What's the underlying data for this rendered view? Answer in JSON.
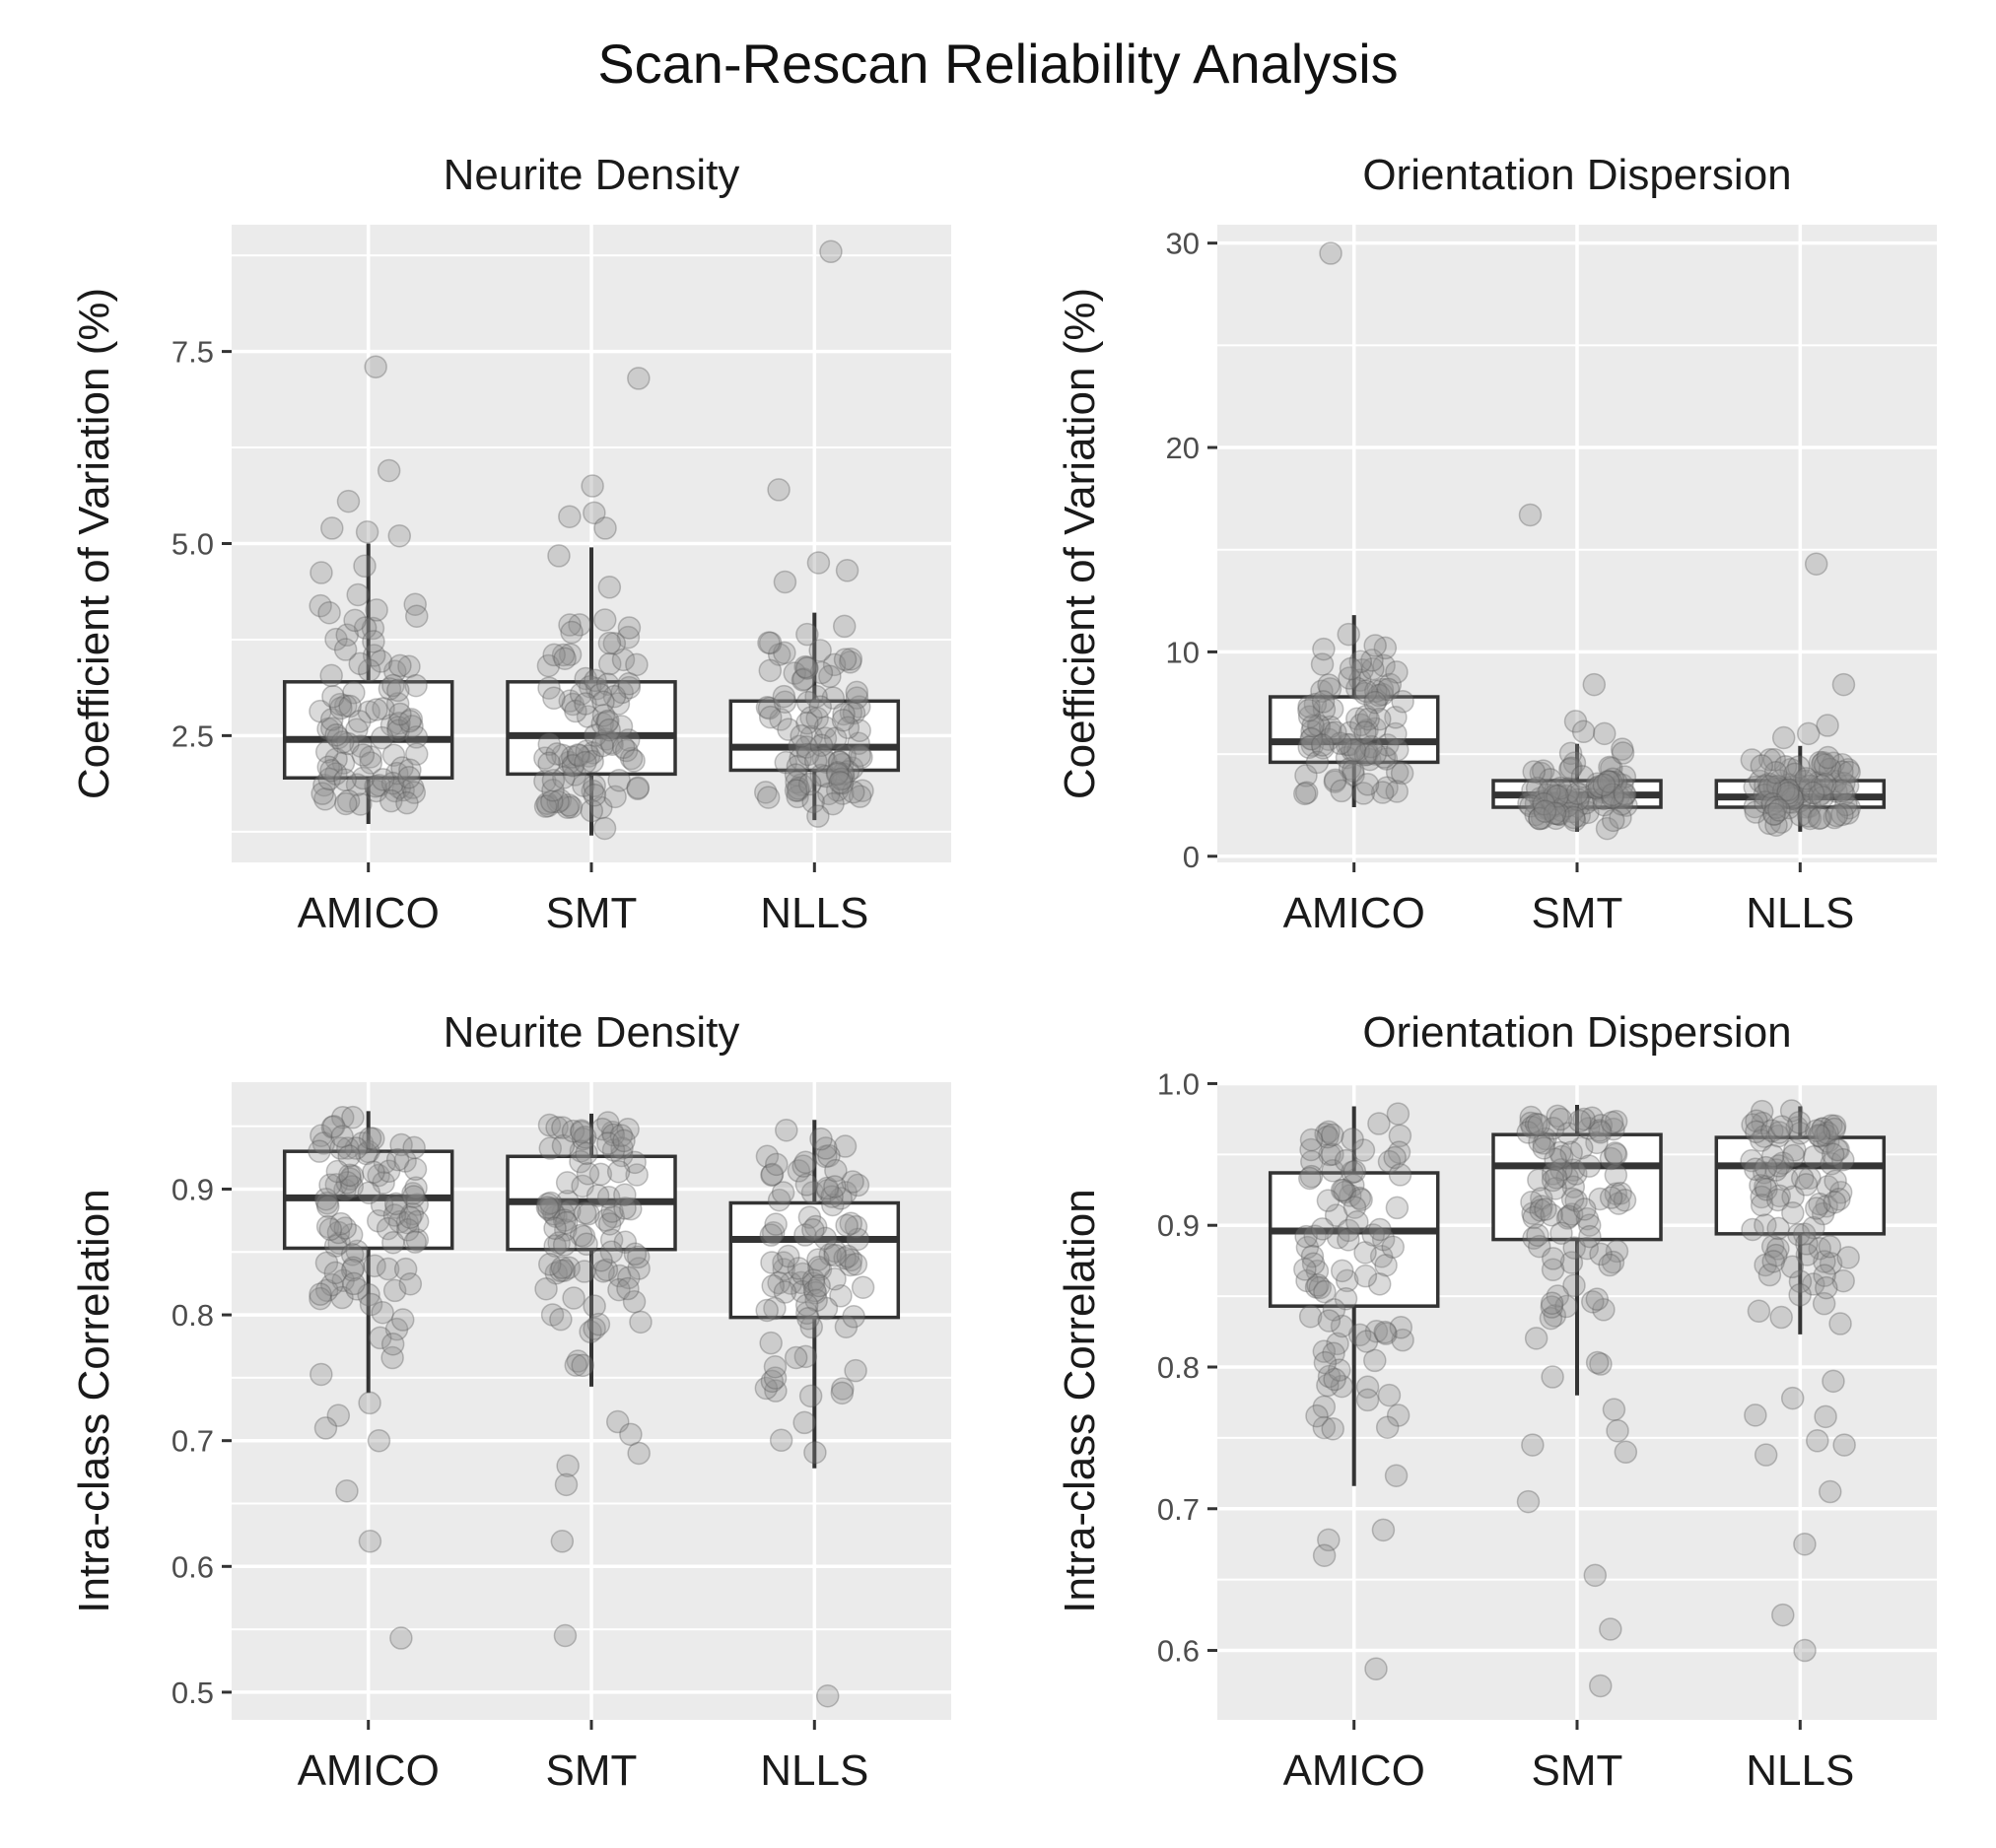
{
  "title": "Scan-Rescan Reliability Analysis",
  "colors": {
    "panel_bg": "#ebebeb",
    "grid": "#ffffff",
    "box_fill": "#ffffff",
    "box_line": "#333333",
    "point": "#8c8c8c",
    "text": "#1a1a1a",
    "tick_text": "#4d4d4d"
  },
  "chart_data": [
    {
      "id": "cv-nd",
      "type": "boxplot",
      "title": "Neurite Density",
      "xlabel": "",
      "ylabel": "Coefficient of Variation (%)",
      "categories": [
        "AMICO",
        "SMT",
        "NLLS"
      ],
      "ylim": [
        0.85,
        9.15
      ],
      "yticks": [
        2.5,
        5.0,
        7.5
      ],
      "ytick_labels": [
        "2.5",
        "5.0",
        "7.5"
      ],
      "minor_ticks": [
        1.25,
        3.75,
        6.25,
        8.75
      ],
      "boxes": [
        {
          "min": 1.35,
          "q1": 1.95,
          "median": 2.45,
          "q3": 3.2,
          "max": 5.0
        },
        {
          "min": 1.2,
          "q1": 2.0,
          "median": 2.5,
          "q3": 3.2,
          "max": 4.95
        },
        {
          "min": 1.4,
          "q1": 2.05,
          "median": 2.35,
          "q3": 2.95,
          "max": 4.1
        }
      ],
      "outliers": [
        [
          7.3,
          5.95,
          5.55,
          5.2,
          5.15,
          5.1
        ],
        [
          7.15,
          5.75,
          5.4,
          5.35,
          5.2
        ],
        [
          8.8,
          5.7,
          4.75,
          4.65,
          4.5
        ]
      ]
    },
    {
      "id": "cv-od",
      "type": "boxplot",
      "title": "Orientation Dispersion",
      "xlabel": "",
      "ylabel": "Coefficient of Variation (%)",
      "categories": [
        "AMICO",
        "SMT",
        "NLLS"
      ],
      "ylim": [
        -0.3,
        30.9
      ],
      "yticks": [
        0,
        10,
        20,
        30
      ],
      "ytick_labels": [
        "0",
        "10",
        "20",
        "30"
      ],
      "minor_ticks": [
        5,
        15,
        25
      ],
      "boxes": [
        {
          "min": 2.4,
          "q1": 4.6,
          "median": 5.6,
          "q3": 7.8,
          "max": 11.8
        },
        {
          "min": 1.2,
          "q1": 2.4,
          "median": 3.0,
          "q3": 3.7,
          "max": 5.5
        },
        {
          "min": 1.2,
          "q1": 2.4,
          "median": 2.9,
          "q3": 3.7,
          "max": 5.4
        }
      ],
      "outliers": [
        [
          29.5
        ],
        [
          16.7,
          8.4,
          6.6,
          6.1,
          6.0
        ],
        [
          14.3,
          8.4,
          6.4,
          6.0,
          5.8
        ]
      ]
    },
    {
      "id": "icc-nd",
      "type": "boxplot",
      "title": "Neurite Density",
      "xlabel": "",
      "ylabel": "Intra-class Correlation",
      "categories": [
        "AMICO",
        "SMT",
        "NLLS"
      ],
      "ylim": [
        0.478,
        0.985
      ],
      "yticks": [
        0.5,
        0.6,
        0.7,
        0.8,
        0.9
      ],
      "ytick_labels": [
        "0.5",
        "0.6",
        "0.7",
        "0.8",
        "0.9"
      ],
      "minor_ticks": [
        0.55,
        0.65,
        0.75,
        0.85,
        0.95
      ],
      "boxes": [
        {
          "min": 0.738,
          "q1": 0.853,
          "median": 0.893,
          "q3": 0.93,
          "max": 0.962
        },
        {
          "min": 0.743,
          "q1": 0.852,
          "median": 0.89,
          "q3": 0.926,
          "max": 0.96
        },
        {
          "min": 0.678,
          "q1": 0.798,
          "median": 0.86,
          "q3": 0.889,
          "max": 0.955
        }
      ],
      "outliers": [
        [
          0.73,
          0.72,
          0.71,
          0.7,
          0.66,
          0.62,
          0.543
        ],
        [
          0.715,
          0.705,
          0.69,
          0.68,
          0.665,
          0.62,
          0.545
        ],
        [
          0.497
        ]
      ]
    },
    {
      "id": "icc-od",
      "type": "boxplot",
      "title": "Orientation Dispersion",
      "xlabel": "",
      "ylabel": "Intra-class Correlation",
      "categories": [
        "AMICO",
        "SMT",
        "NLLS"
      ],
      "ylim": [
        0.551,
        1.001
      ],
      "yticks": [
        0.6,
        0.7,
        0.8,
        0.9,
        1.0
      ],
      "ytick_labels": [
        "0.6",
        "0.7",
        "0.8",
        "0.9",
        "1.0"
      ],
      "minor_ticks": [
        0.65,
        0.75,
        0.85,
        0.95
      ],
      "boxes": [
        {
          "min": 0.716,
          "q1": 0.843,
          "median": 0.896,
          "q3": 0.937,
          "max": 0.984
        },
        {
          "min": 0.78,
          "q1": 0.89,
          "median": 0.942,
          "q3": 0.964,
          "max": 0.985
        },
        {
          "min": 0.823,
          "q1": 0.894,
          "median": 0.942,
          "q3": 0.962,
          "max": 0.984
        }
      ],
      "outliers": [
        [
          0.685,
          0.678,
          0.667,
          0.587
        ],
        [
          0.77,
          0.755,
          0.745,
          0.74,
          0.705,
          0.653,
          0.615,
          0.575
        ],
        [
          0.79,
          0.778,
          0.766,
          0.765,
          0.748,
          0.745,
          0.738,
          0.712,
          0.675,
          0.625,
          0.6
        ]
      ]
    }
  ]
}
